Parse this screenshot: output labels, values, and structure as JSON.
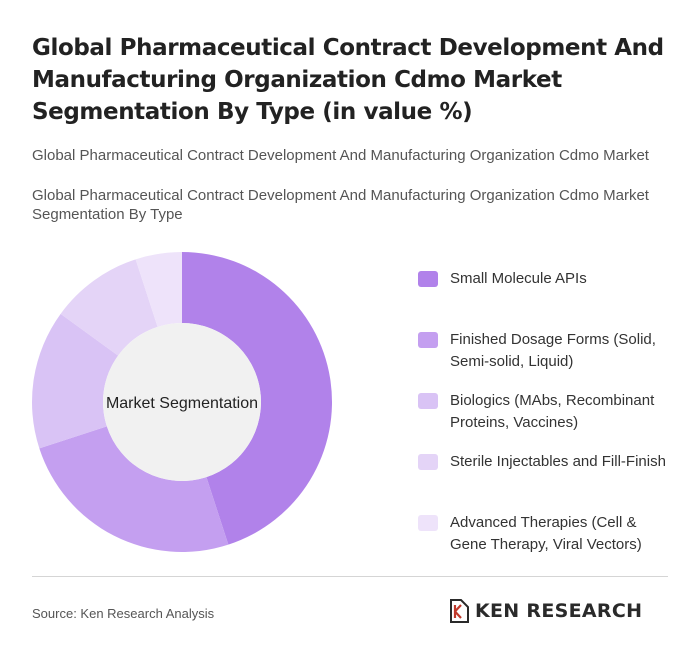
{
  "header": {
    "title": "Global Pharmaceutical Contract Development And Manufacturing Organization Cdmo Market Segmentation By Type (in value %)",
    "subtitle_1": "Global Pharmaceutical Contract Development And Manufacturing Organization Cdmo Market",
    "subtitle_2": "Global Pharmaceutical Contract Development And Manufacturing Organization Cdmo Market Segmentation By Type"
  },
  "chart_data": {
    "type": "pie",
    "variant": "donut",
    "center_label": "Market Segmentation",
    "categories": [
      "Small Molecule APIs",
      "Finished Dosage Forms (Solid, Semi-solid, Liquid)",
      "Biologics (MAbs, Recombinant Proteins, Vaccines)",
      "Sterile Injectables and Fill-Finish",
      "Advanced Therapies (Cell & Gene Therapy, Viral Vectors)"
    ],
    "values": [
      45,
      25,
      15,
      10,
      5
    ],
    "colors": [
      "#b182ea",
      "#c49ff0",
      "#d9c3f5",
      "#e4d4f7",
      "#eee3fa"
    ],
    "legend_position": "right"
  },
  "footer": {
    "source": "Source: Ken Research Analysis",
    "brand": "KEN RESEARCH"
  }
}
